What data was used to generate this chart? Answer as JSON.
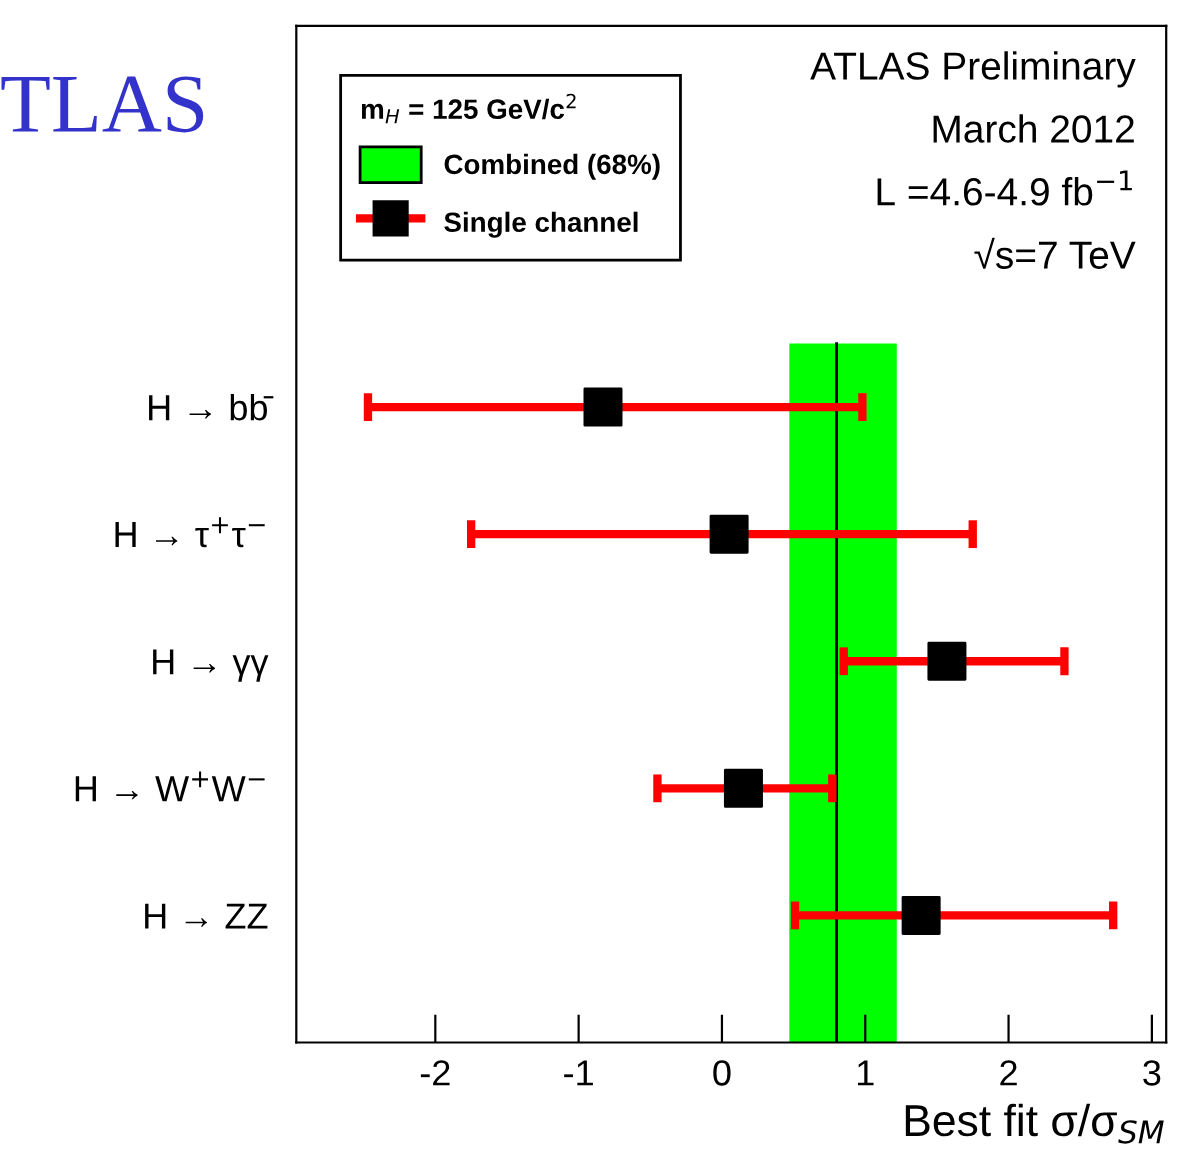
{
  "chart_data": {
    "type": "scatter",
    "categories": [
      "H → bb̄",
      "H → τ$^{+}$τ$^{−}$",
      "H → γγ",
      "H → W$^{+}$W$^{−}$",
      "H → ZZ"
    ],
    "orientation": "horizontal",
    "series": [
      {
        "name": "Single channel",
        "color": "#000000",
        "values": [
          -0.83,
          0.05,
          1.57,
          0.15,
          1.39
        ],
        "errors": [
          [
            -2.47,
            0.98
          ],
          [
            -1.75,
            1.75
          ],
          [
            0.85,
            2.39
          ],
          [
            -0.45,
            0.77
          ],
          [
            0.51,
            2.73
          ]
        ]
      }
    ],
    "bands": [
      {
        "axis": "x",
        "from": 0.47,
        "to": 1.22,
        "label": "Combined (68%)",
        "color": "#00ff00"
      }
    ],
    "ref_lines": [
      {
        "axis": "x",
        "value": 0.8,
        "color": "#000000"
      }
    ],
    "xlim": [
      -2.97,
      3.1
    ],
    "xticks": [
      -2,
      -1,
      0,
      1,
      2,
      3
    ],
    "xlabel": "Best fit σ/σ$_{SM}$",
    "legend_title": "m$_{H}$ = 125 GeV/c$^{2}$",
    "legend": "top left",
    "marker": "square",
    "grid": false,
    "annotations": [
      "TLAS",
      "ATLAS Preliminary",
      "March 2012",
      "L =4.6-4.9 fb$^{−1}$",
      "√s=7 TeV"
    ]
  }
}
